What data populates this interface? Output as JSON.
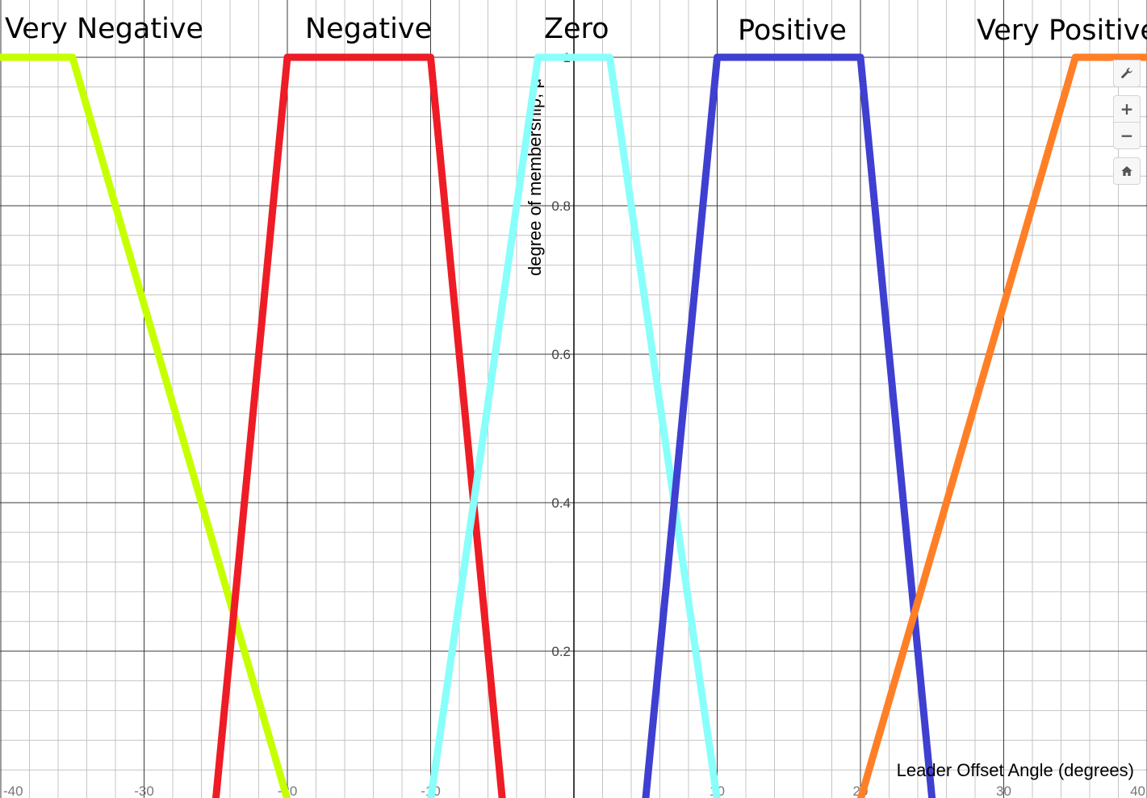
{
  "chart_data": {
    "type": "line",
    "xlabel": "Leader Offset Angle (degrees)",
    "ylabel": "degree of membership, μ",
    "xlim": [
      -40,
      40
    ],
    "ylim": [
      0,
      1
    ],
    "x_ticks": [
      -40,
      -30,
      -20,
      -10,
      10,
      20,
      30,
      40
    ],
    "y_ticks": [
      0.2,
      0.4,
      0.6,
      0.8,
      1
    ],
    "grid": true,
    "series": [
      {
        "name": "Very Negative",
        "color": "#c6ff00",
        "x": [
          -45,
          -35,
          -20
        ],
        "y": [
          1,
          1,
          0
        ]
      },
      {
        "name": "Negative",
        "color": "#ee1c25",
        "x": [
          -25,
          -20,
          -10,
          -5
        ],
        "y": [
          0,
          1,
          1,
          0
        ]
      },
      {
        "name": "Zero",
        "color": "#88fffb",
        "x": [
          -10,
          -2.5,
          2.5,
          10
        ],
        "y": [
          0,
          1,
          1,
          0
        ]
      },
      {
        "name": "Positive",
        "color": "#3f3fd1",
        "x": [
          5,
          10,
          20,
          25
        ],
        "y": [
          0,
          1,
          1,
          0
        ]
      },
      {
        "name": "Very Positive",
        "color": "#ff7f27",
        "x": [
          20,
          35,
          45
        ],
        "y": [
          0,
          1,
          1
        ]
      }
    ]
  },
  "controls": {
    "wrench": "wrench-icon",
    "zoom_in_label": "+",
    "zoom_out_label": "−",
    "home": "home-icon"
  }
}
